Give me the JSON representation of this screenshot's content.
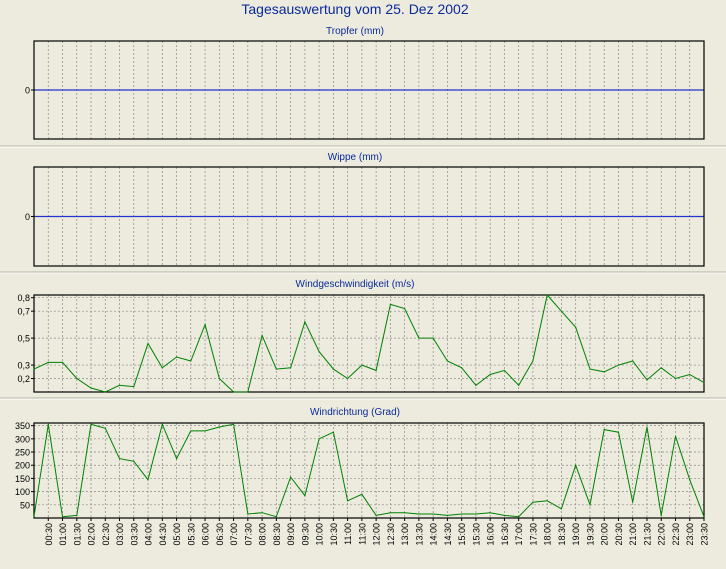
{
  "page": {
    "title": "Tagesauswertung vom 25. Dez 2002",
    "title_color": "#0a2a9c",
    "background": "#ecebde",
    "plot_background": "#ecebde",
    "grid_color": "#8a8a8a",
    "zero_line_color": "#2233cc",
    "series_color": "#008000",
    "axis_color": "#000000"
  },
  "chart_data": [
    {
      "type": "line",
      "title": "Tropfer (mm)",
      "ylim": [
        -1,
        1
      ],
      "yticks": [
        0
      ],
      "ytick_labels": [
        "0"
      ],
      "zero_line": true,
      "grid": true,
      "series": []
    },
    {
      "type": "line",
      "title": "Wippe (mm)",
      "ylim": [
        -1,
        1
      ],
      "yticks": [
        0
      ],
      "ytick_labels": [
        "0"
      ],
      "zero_line": true,
      "grid": true,
      "series": []
    },
    {
      "type": "line",
      "title": "Windgeschwindigkeit (m/s)",
      "ylim": [
        0.1,
        0.82
      ],
      "yticks": [
        0.2,
        0.3,
        0.5,
        0.7,
        0.8
      ],
      "ytick_labels": [
        "0,2",
        "0,3",
        "0,5",
        "0,7",
        "0,8"
      ],
      "zero_line": false,
      "grid": true,
      "series": [
        {
          "values": [
            0.27,
            0.32,
            0.32,
            0.2,
            0.13,
            0.1,
            0.15,
            0.14,
            0.46,
            0.28,
            0.36,
            0.33,
            0.6,
            0.2,
            0.1,
            0.1,
            0.52,
            0.27,
            0.28,
            0.62,
            0.4,
            0.27,
            0.2,
            0.3,
            0.26,
            0.75,
            0.72,
            0.5,
            0.5,
            0.33,
            0.28,
            0.15,
            0.23,
            0.26,
            0.15,
            0.33,
            0.82,
            0.7,
            0.58,
            0.27,
            0.25,
            0.3,
            0.33,
            0.19,
            0.28,
            0.2,
            0.23,
            0.17
          ]
        }
      ]
    },
    {
      "type": "line",
      "title": "Windrichtung (Grad)",
      "ylim": [
        0,
        360
      ],
      "yticks": [
        50,
        100,
        150,
        200,
        250,
        300,
        350
      ],
      "ytick_labels": [
        "50",
        "100",
        "150",
        "200",
        "250",
        "300",
        "350"
      ],
      "zero_line": false,
      "grid": true,
      "series": [
        {
          "values": [
            5,
            355,
            5,
            10,
            355,
            340,
            225,
            215,
            145,
            355,
            225,
            330,
            330,
            345,
            355,
            15,
            20,
            5,
            155,
            85,
            300,
            325,
            65,
            90,
            10,
            20,
            20,
            15,
            15,
            10,
            15,
            15,
            20,
            10,
            5,
            60,
            65,
            35,
            200,
            50,
            335,
            325,
            60,
            345,
            10,
            310,
            145,
            5
          ]
        }
      ]
    }
  ],
  "x_axis": {
    "tick_labels": [
      "00:30",
      "01:00",
      "01:30",
      "02:00",
      "02:30",
      "03:00",
      "03:30",
      "04:00",
      "04:30",
      "05:00",
      "05:30",
      "06:00",
      "06:30",
      "07:00",
      "07:30",
      "08:00",
      "08:30",
      "09:00",
      "09:30",
      "10:00",
      "10:30",
      "11:00",
      "11:30",
      "12:00",
      "12:30",
      "13:00",
      "13:30",
      "14:00",
      "14:30",
      "15:00",
      "15:30",
      "16:00",
      "16:30",
      "17:00",
      "17:30",
      "18:00",
      "18:30",
      "19:00",
      "19:30",
      "20:00",
      "20:30",
      "21:00",
      "21:30",
      "22:00",
      "22:30",
      "23:00",
      "23:30"
    ]
  }
}
